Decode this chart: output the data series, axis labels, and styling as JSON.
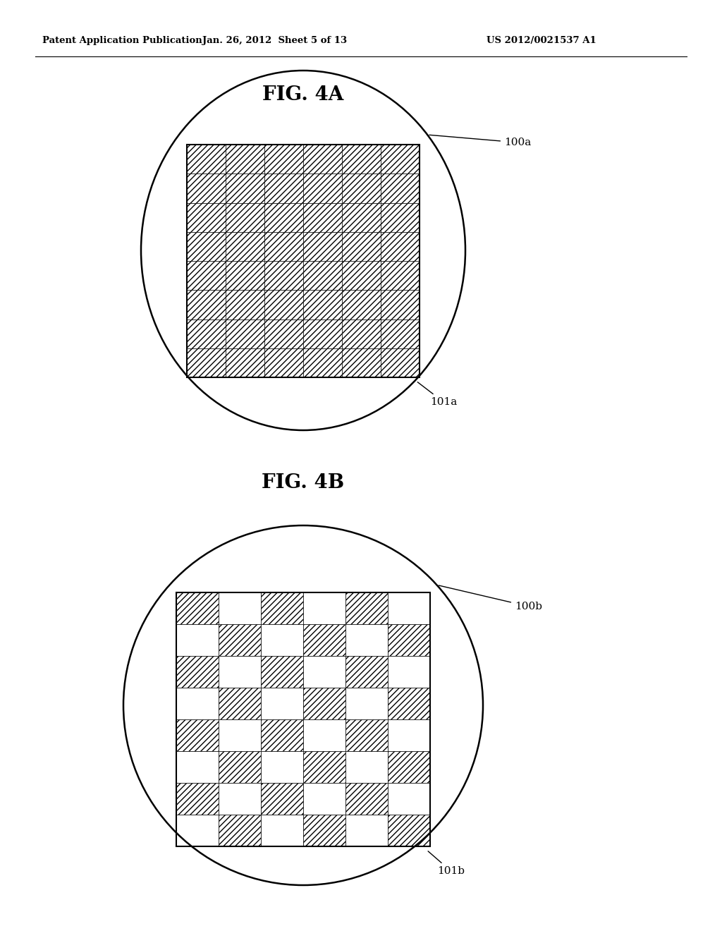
{
  "fig_width": 10.24,
  "fig_height": 13.2,
  "bg_color": "#ffffff",
  "header_left": "Patent Application Publication",
  "header_center": "Jan. 26, 2012  Sheet 5 of 13",
  "header_right": "US 2012/0021537 A1",
  "fig4a_label": "FIG. 4A",
  "fig4b_label": "FIG. 4B",
  "fig4a_circle_label": "100a",
  "fig4a_rect_label": "101a",
  "fig4b_circle_label": "100b",
  "fig4b_rect_label": "101b",
  "grid_cols": 6,
  "grid_rows_4a": 8,
  "grid_rows_4b": 8,
  "line_color": "#000000"
}
